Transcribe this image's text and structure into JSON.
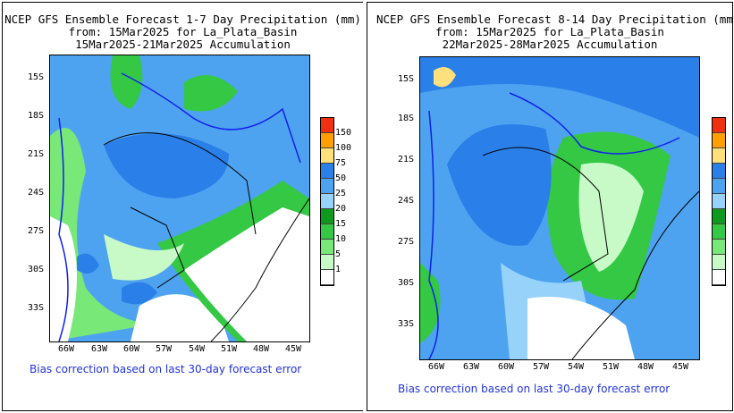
{
  "panels": [
    {
      "title_line1": "NCEP GFS Ensemble Forecast 1-7 Day Precipitation (mm)",
      "title_line2": "from: 15Mar2025   for La_Plata_Basin",
      "title_line3": "15Mar2025-21Mar2025 Accumulation",
      "footer": "Bias correction based on last 30-day forecast error"
    },
    {
      "title_line1": "NCEP GFS Ensemble Forecast 8-14 Day Precipitation (mm)",
      "title_line2": "from: 15Mar2025   for La_Plata_Basin",
      "title_line3": "22Mar2025-28Mar2025 Accumulation",
      "footer": "Bias correction based on last 30-day forecast error"
    }
  ],
  "lat_labels": [
    "15S",
    "18S",
    "21S",
    "24S",
    "27S",
    "30S",
    "33S"
  ],
  "lon_labels": [
    "66W",
    "63W",
    "60W",
    "57W",
    "54W",
    "51W",
    "48W",
    "45W"
  ],
  "legend": {
    "unit": "mm",
    "levels": [
      "150",
      "100",
      "75",
      "50",
      "25",
      "20",
      "15",
      "10",
      "5",
      "1"
    ],
    "colors": [
      "#f03010",
      "#ffa000",
      "#ffe07a",
      "#2a7fe8",
      "#4ea3f0",
      "#96d2fa",
      "#0e9a1e",
      "#34c845",
      "#78e878",
      "#c8fac8",
      "#ffffff"
    ]
  }
}
